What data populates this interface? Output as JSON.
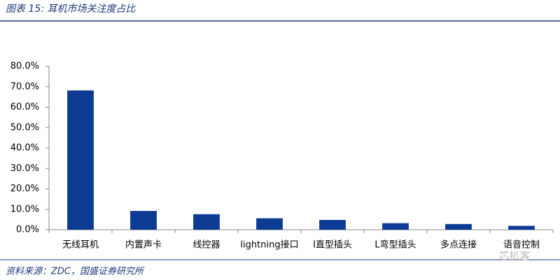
{
  "chart_data": {
    "type": "bar",
    "title": "图表 15:  耳机市场关注度占比",
    "source": "资料来源：ZDC，国盛证券研究所",
    "watermark": "芯扒客",
    "categories": [
      "无线耳机",
      "内置声卡",
      "线控器",
      "lightning接口",
      "I直型插头",
      "L弯型插头",
      "多点连接",
      "语音控制"
    ],
    "values": [
      68.2,
      9.2,
      7.6,
      5.6,
      4.8,
      3.2,
      2.8,
      1.9
    ],
    "color": "#0d3b94",
    "ylim": [
      0,
      80
    ],
    "yticks": [
      {
        "value": 0,
        "label": "0.0%"
      },
      {
        "value": 10,
        "label": "10.0%"
      },
      {
        "value": 20,
        "label": "20.0%"
      },
      {
        "value": 30,
        "label": "30.0%"
      },
      {
        "value": 40,
        "label": "40.0%"
      },
      {
        "value": 50,
        "label": "50.0%"
      },
      {
        "value": 60,
        "label": "60.0%"
      },
      {
        "value": 70,
        "label": "70.0%"
      },
      {
        "value": 80,
        "label": "80.0%"
      }
    ],
    "grid": false
  }
}
